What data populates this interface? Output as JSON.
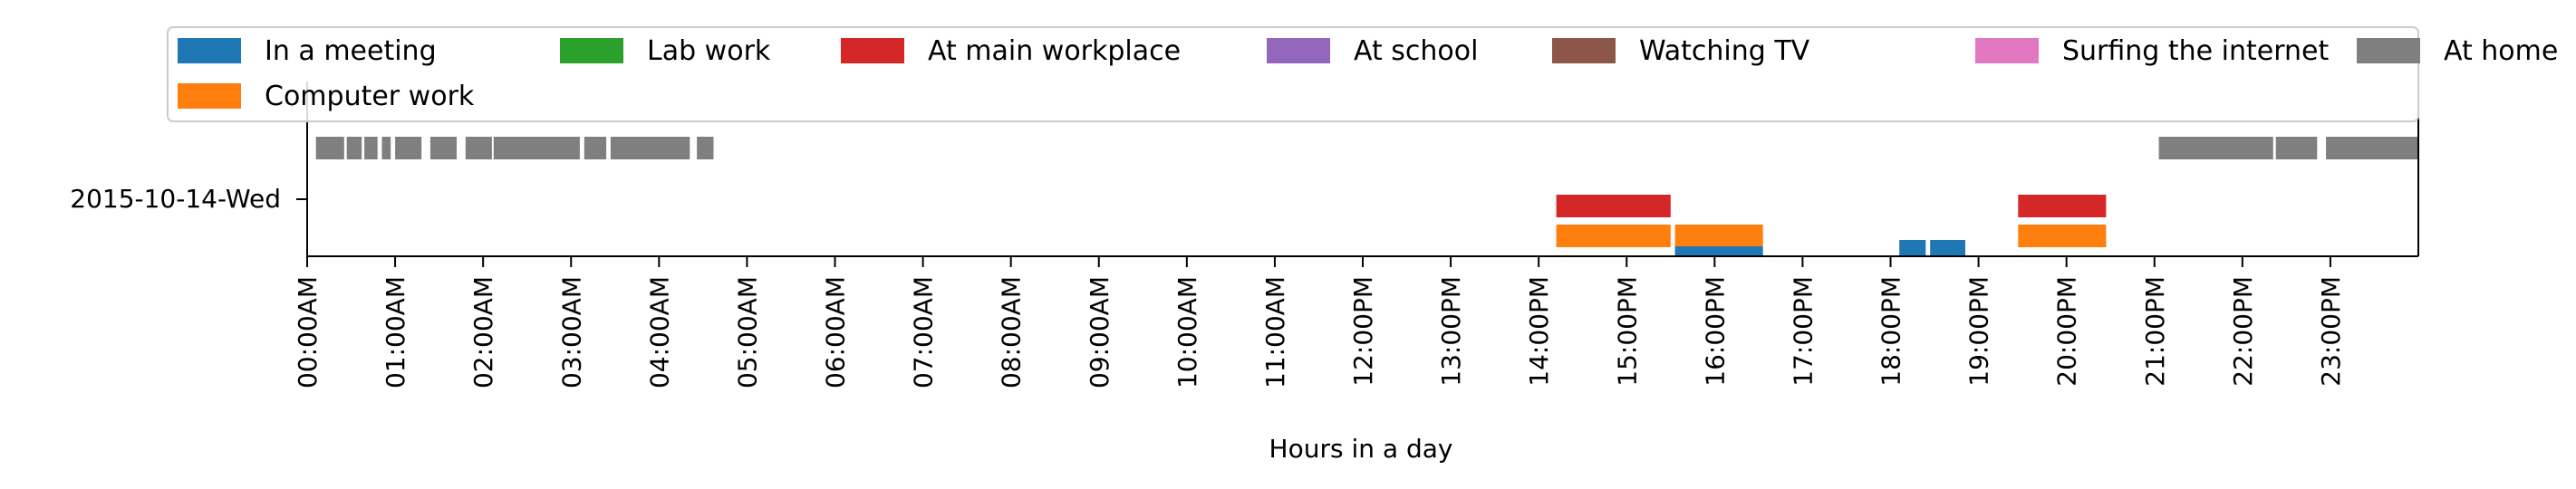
{
  "chart_data": {
    "type": "timeline",
    "day_label": "2015-10-14-Wed",
    "xlabel": "Hours in a day",
    "xlim_hours": [
      0,
      24
    ],
    "x_ticks": [
      "00:00AM",
      "01:00AM",
      "02:00AM",
      "03:00AM",
      "04:00AM",
      "05:00AM",
      "06:00AM",
      "07:00AM",
      "08:00AM",
      "09:00AM",
      "10:00AM",
      "11:00AM",
      "12:00PM",
      "13:00PM",
      "14:00PM",
      "15:00PM",
      "16:00PM",
      "17:00PM",
      "18:00PM",
      "19:00PM",
      "20:00PM",
      "21:00PM",
      "22:00PM",
      "23:00PM"
    ],
    "legend_position": "top",
    "legend": [
      {
        "label": "In a meeting",
        "color": "#1f77b4"
      },
      {
        "label": "Lab work",
        "color": "#2ca02c"
      },
      {
        "label": "At main workplace",
        "color": "#d62728"
      },
      {
        "label": "At school",
        "color": "#9467bd"
      },
      {
        "label": "Watching TV",
        "color": "#8c564b"
      },
      {
        "label": "Surfing the internet",
        "color": "#e377c2"
      },
      {
        "label": "At home",
        "color": "#7f7f7f"
      },
      {
        "label": "Computer work",
        "color": "#ff7f0e"
      }
    ],
    "series": [
      {
        "name": "In a meeting",
        "color": "#1f77b4",
        "intervals": [
          [
            15.55,
            16.55
          ],
          [
            18.1,
            18.4
          ],
          [
            18.45,
            18.85
          ]
        ]
      },
      {
        "name": "Computer work",
        "color": "#ff7f0e",
        "intervals": [
          [
            14.2,
            15.5
          ],
          [
            15.55,
            16.55
          ],
          [
            19.45,
            20.45
          ]
        ]
      },
      {
        "name": "At main workplace",
        "color": "#d62728",
        "intervals": [
          [
            14.2,
            15.5
          ],
          [
            19.45,
            20.45
          ]
        ]
      },
      {
        "name": "At home",
        "color": "#7f7f7f",
        "intervals": [
          [
            0.1,
            0.42
          ],
          [
            0.45,
            0.62
          ],
          [
            0.65,
            0.8
          ],
          [
            0.85,
            0.95
          ],
          [
            1.0,
            1.3
          ],
          [
            1.4,
            1.7
          ],
          [
            1.8,
            2.1
          ],
          [
            2.12,
            3.1
          ],
          [
            3.15,
            3.4
          ],
          [
            3.45,
            4.35
          ],
          [
            4.43,
            4.62
          ],
          [
            21.05,
            22.35
          ],
          [
            22.38,
            22.85
          ],
          [
            22.95,
            24.0
          ]
        ]
      }
    ]
  }
}
